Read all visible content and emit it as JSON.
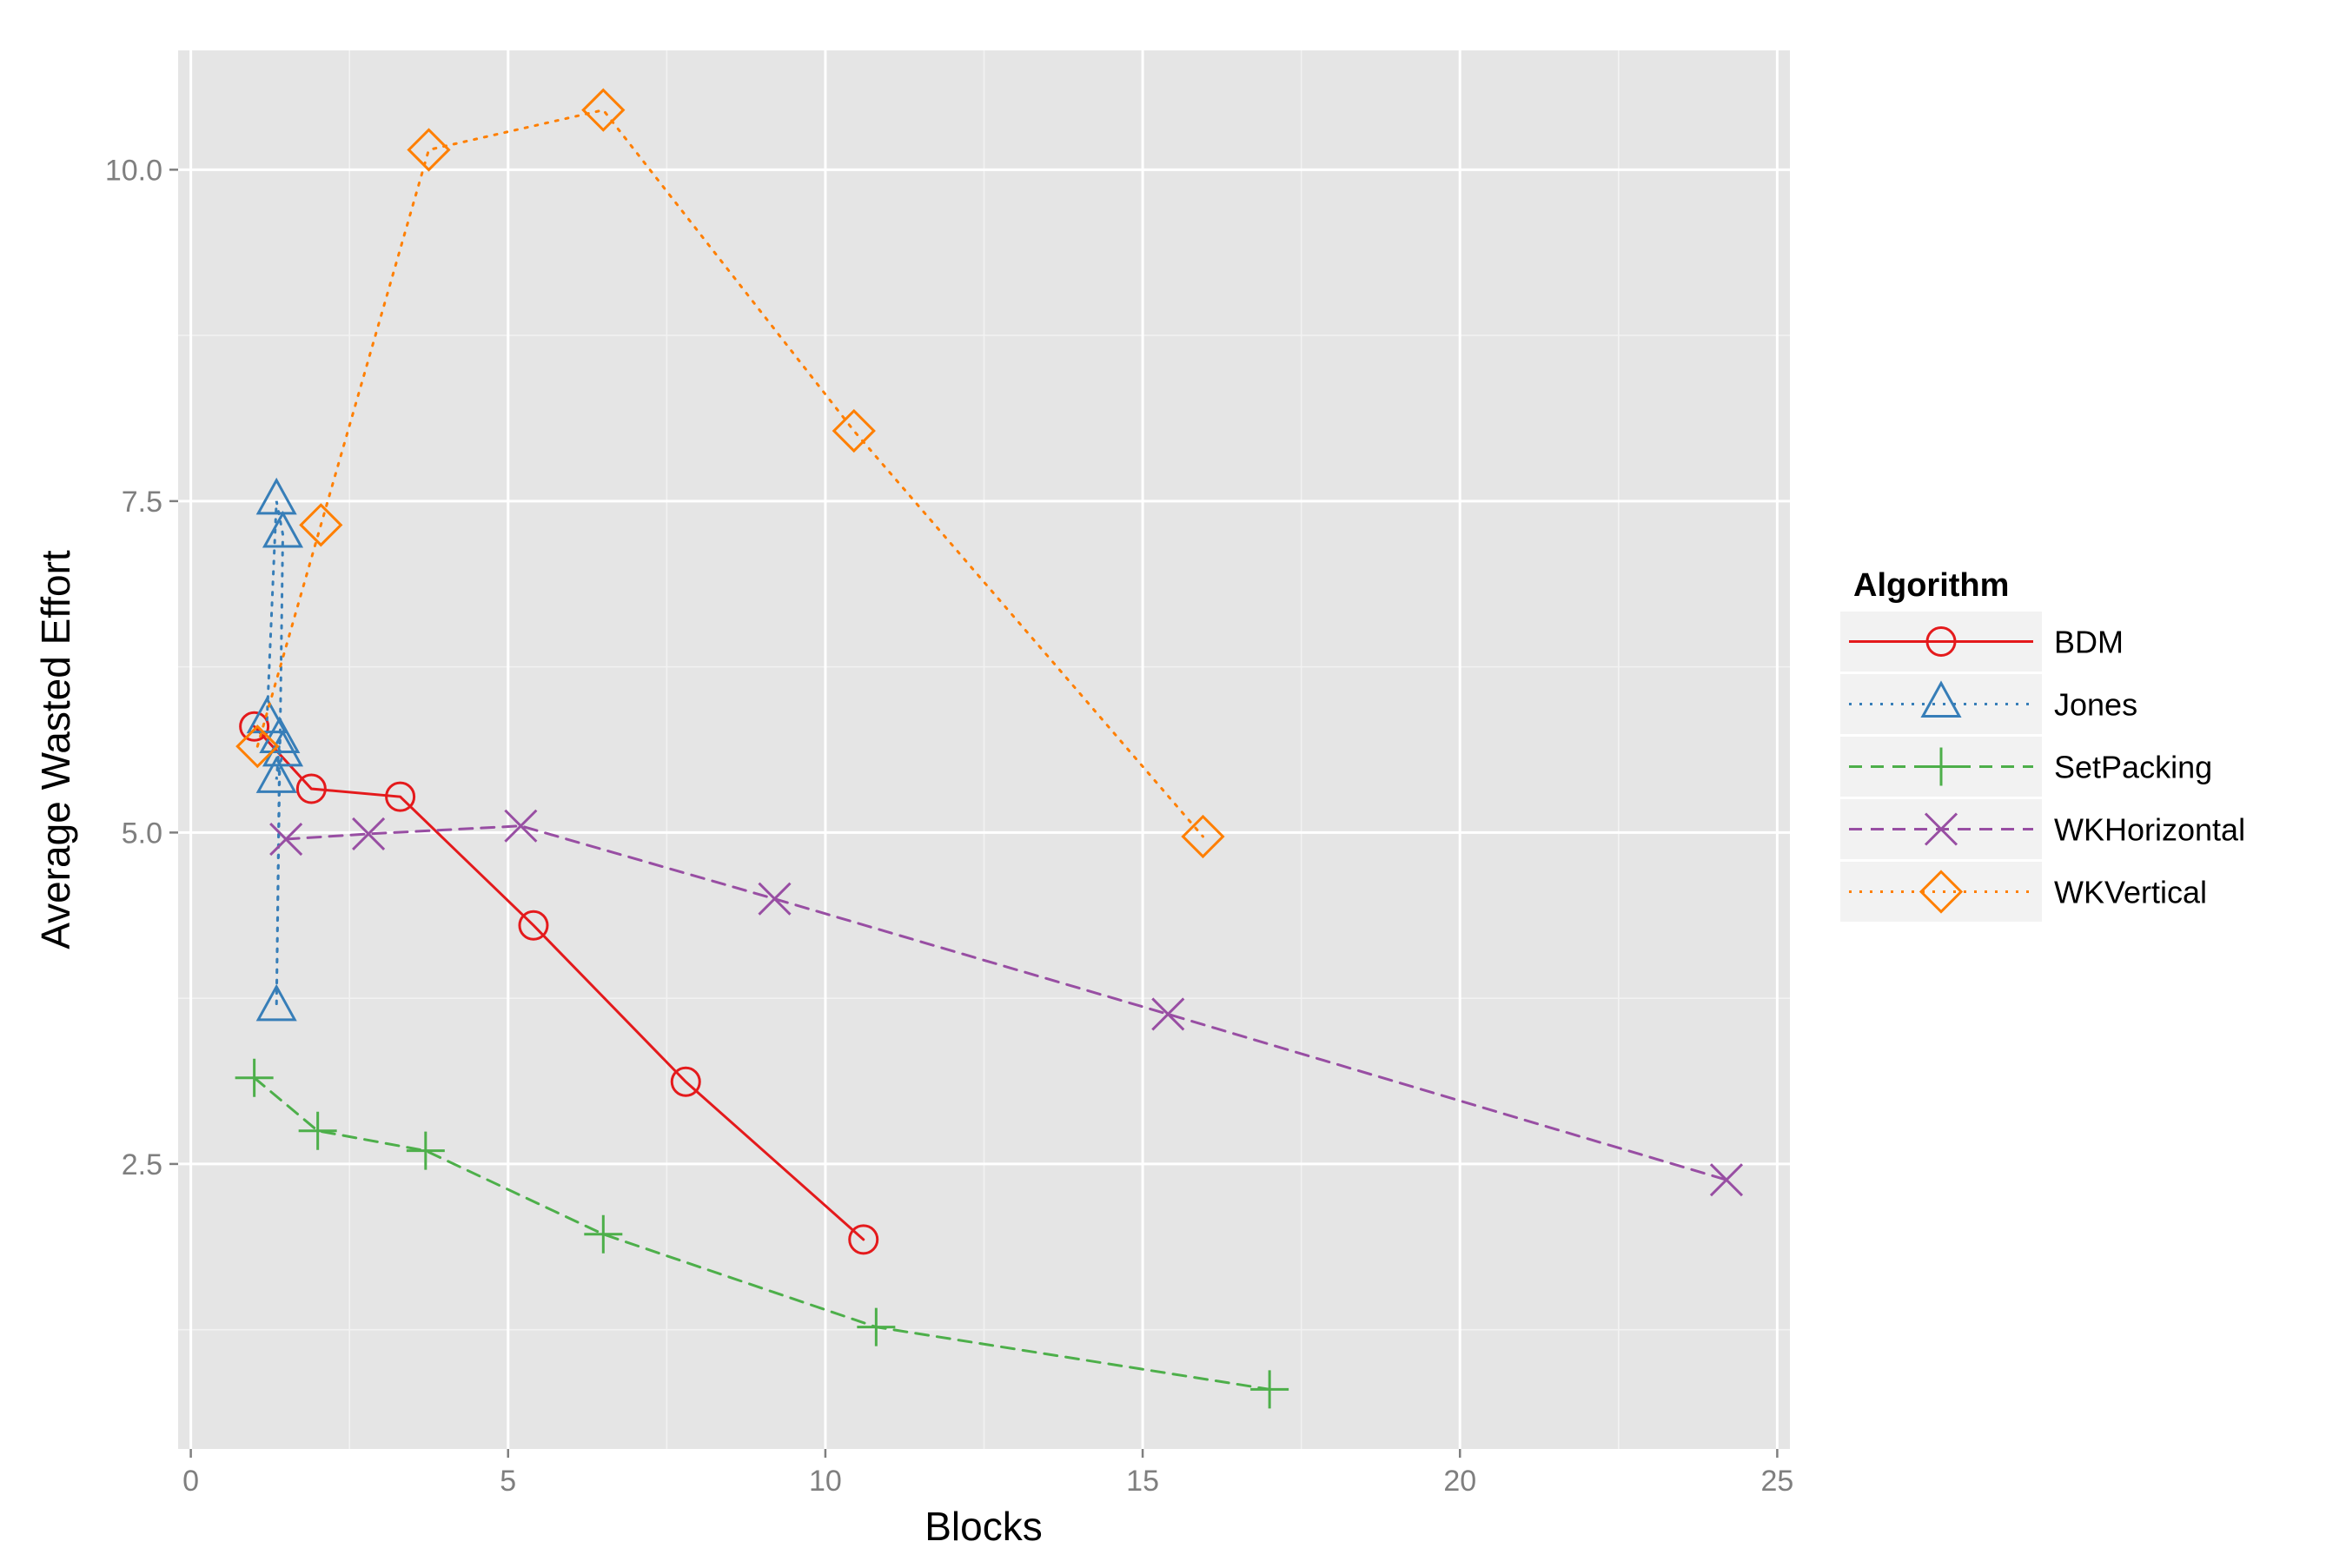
{
  "chart_data": {
    "type": "line",
    "title": "",
    "xlabel": "Blocks",
    "ylabel": "Average Wasted Effort",
    "xlim": [
      -0.2,
      25.2
    ],
    "ylim": [
      0.35,
      10.9
    ],
    "x_ticks": [
      0,
      5,
      10,
      15,
      20,
      25
    ],
    "x_tick_labels": [
      "0",
      "5",
      "10",
      "15",
      "20",
      "25"
    ],
    "y_ticks": [
      2.5,
      5.0,
      7.5,
      10.0
    ],
    "y_tick_labels": [
      "2.5",
      "5.0",
      "7.5",
      "10.0"
    ],
    "grid": true,
    "legend": {
      "title": "Algorithm",
      "position": "right"
    },
    "series": [
      {
        "name": "BDM",
        "color": "#E41A1C",
        "line": "solid",
        "marker": "circle",
        "x": [
          1.0,
          1.9,
          3.3,
          5.4,
          7.8,
          10.6
        ],
        "y": [
          5.8,
          5.33,
          5.27,
          4.3,
          3.12,
          1.93
        ]
      },
      {
        "name": "Jones",
        "color": "#377EB8",
        "line": "dotted",
        "marker": "triangle",
        "x": [
          1.2,
          1.35,
          1.45,
          1.35,
          1.4,
          1.35,
          1.45
        ],
        "y": [
          5.85,
          7.5,
          7.25,
          3.68,
          5.7,
          5.4,
          5.6
        ]
      },
      {
        "name": "SetPacking",
        "color": "#4DAF4A",
        "line": "dashed",
        "marker": "plus",
        "x": [
          1.0,
          2.0,
          3.7,
          6.5,
          10.8,
          17.0
        ],
        "y": [
          3.15,
          2.75,
          2.6,
          1.97,
          1.27,
          0.8
        ]
      },
      {
        "name": "WKHorizontal",
        "color": "#984EA3",
        "line": "dashed",
        "marker": "cross",
        "x": [
          1.5,
          2.8,
          5.2,
          9.2,
          15.4,
          24.2
        ],
        "y": [
          4.95,
          4.99,
          5.05,
          4.5,
          3.63,
          2.38
        ]
      },
      {
        "name": "WKVertical",
        "color": "#FF7F00",
        "line": "dotted",
        "marker": "diamond",
        "x": [
          1.05,
          2.05,
          3.75,
          6.5,
          10.45,
          15.95
        ],
        "y": [
          5.65,
          7.32,
          10.15,
          10.45,
          8.03,
          4.97
        ]
      }
    ]
  }
}
